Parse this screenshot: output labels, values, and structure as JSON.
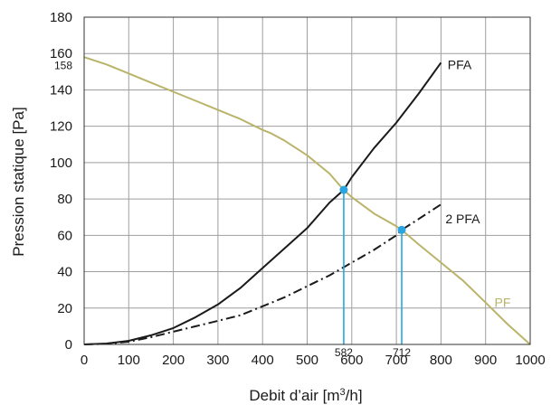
{
  "chart_data": {
    "type": "line",
    "xlabel_main": "Debit d’air [m",
    "xlabel_sup": "3",
    "xlabel_end": "/h]",
    "ylabel": "Pression statique [Pa]",
    "xlim": [
      0,
      1000
    ],
    "ylim": [
      0,
      180
    ],
    "xticks": [
      "0",
      "100",
      "200",
      "300",
      "400",
      "500",
      "600",
      "700",
      "800",
      "900",
      "1000"
    ],
    "yticks": [
      "0",
      "20",
      "40",
      "60",
      "80",
      "100",
      "120",
      "140",
      "160",
      "180"
    ],
    "grid": true,
    "colors": {
      "fan_curve": "#bab46a",
      "system_curve": "#1a1a1a",
      "operating_point": "#2aa5df",
      "grid": "#9e9e9e",
      "frame": "#333333"
    },
    "series": [
      {
        "name": "PF",
        "style": "solid",
        "x": [
          0,
          50,
          100,
          150,
          200,
          250,
          300,
          350,
          400,
          420,
          450,
          500,
          550,
          582,
          600,
          650,
          700,
          712,
          750,
          800,
          850,
          900,
          950,
          1000
        ],
        "y": [
          158,
          154,
          149,
          144,
          139,
          134,
          129,
          124,
          118,
          116,
          112,
          104,
          94,
          85,
          81,
          72,
          65,
          63,
          55,
          45,
          35,
          23,
          11,
          0
        ]
      },
      {
        "name": "PFA",
        "style": "solid",
        "x": [
          0,
          50,
          100,
          150,
          200,
          250,
          300,
          350,
          400,
          450,
          500,
          550,
          582,
          600,
          650,
          700,
          750,
          800
        ],
        "y": [
          0,
          0.5,
          2,
          5,
          9,
          15,
          22,
          31,
          42,
          53,
          64,
          78,
          85,
          92,
          108,
          122,
          138,
          155
        ]
      },
      {
        "name": "2 PFA",
        "style": "dashdot",
        "x": [
          0,
          50,
          100,
          150,
          200,
          250,
          300,
          350,
          400,
          450,
          500,
          550,
          600,
          650,
          700,
          712,
          750,
          800
        ],
        "y": [
          0,
          0.3,
          1.5,
          4,
          7,
          10,
          13,
          16,
          21,
          26,
          32,
          38,
          45,
          52,
          60,
          63,
          69,
          77
        ]
      }
    ],
    "operating_points": [
      {
        "x": 582,
        "y": 85,
        "label": "582"
      },
      {
        "x": 712,
        "y": 63,
        "label": "712"
      }
    ],
    "annotations": [
      {
        "text": "PFA",
        "x": 815,
        "y": 154
      },
      {
        "text": "2 PFA",
        "x": 810,
        "y": 69
      },
      {
        "text": "PF",
        "x": 920,
        "y": 23
      },
      {
        "text": "158",
        "x": -5,
        "y": 154
      }
    ]
  }
}
